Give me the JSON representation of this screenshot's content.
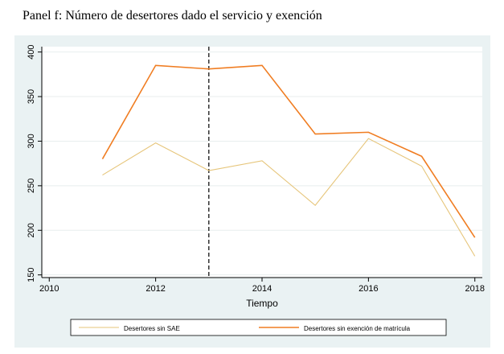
{
  "chart_data": {
    "type": "line",
    "title": "Panel f: Número de desertores dado el servicio y exención",
    "x_label": "Tiempo",
    "x": [
      2011,
      2012,
      2013,
      2014,
      2015,
      2016,
      2017,
      2018
    ],
    "series": [
      {
        "name": "Desertores sin SAE",
        "color": "#e6c57a",
        "values": [
          262,
          298,
          267,
          278,
          228,
          303,
          272,
          171
        ]
      },
      {
        "name": "Desertores sin exención de matrícula",
        "color": "#f07d22",
        "values": [
          280,
          385,
          381,
          385,
          308,
          310,
          283,
          192
        ]
      }
    ],
    "vline": 2013,
    "xlim": [
      2009.86,
      2018.14
    ],
    "xticks": [
      2010,
      2012,
      2014,
      2016,
      2018
    ],
    "ylim": [
      147,
      406
    ],
    "yticks": [
      150,
      200,
      250,
      300,
      350,
      400
    ],
    "grid": true,
    "legend": "bottom"
  }
}
